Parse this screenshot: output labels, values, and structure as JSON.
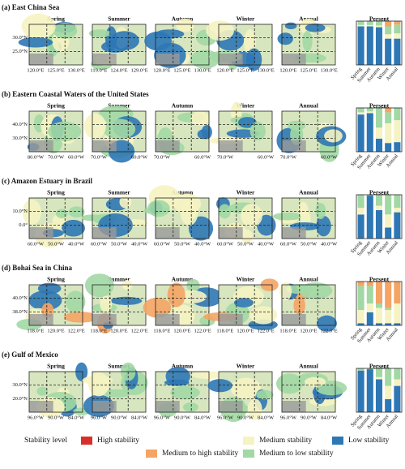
{
  "legend_title": "Stability level",
  "panels": [
    {
      "title": "(a) East China Sea",
      "map_titles": [
        "Spring",
        "Summer",
        "Autumn",
        "Winter",
        "Annual"
      ],
      "lat_labels": [
        "30.0°N",
        "25.0°N"
      ],
      "lon_labels": [
        [
          "120.0°E",
          "125.0°E",
          "130.0°E"
        ],
        [
          "119.0°E",
          "124.0°E",
          "129.0°E"
        ],
        [
          "120.0°E",
          "125.0°E",
          "130.0°E"
        ],
        [
          "120.0°E",
          "125.0°E",
          "130.0°E"
        ],
        [
          "120.0°E",
          "125.0°E",
          "130.0°E"
        ]
      ]
    },
    {
      "title": "(b) Eastern Coastal Waters of the United States",
      "map_titles": [
        "Spring",
        "Summer",
        "Autumn",
        "Winter",
        "Annual"
      ],
      "lat_labels": [
        "40.0°N",
        "30.0°N"
      ],
      "lon_labels": [
        [
          "80.0°W",
          "70.0°W",
          "60.0°W"
        ],
        [
          "70.0°W",
          "60.0°W"
        ],
        [
          "70.0°W",
          "60.0°W"
        ],
        [
          "70.0°W",
          "60.0°W"
        ],
        [
          "70.0°W",
          "60.0°W"
        ]
      ]
    },
    {
      "title": "(c) Amazon Estuary in Brazil",
      "map_titles": [
        "Spring",
        "Summer",
        "Autumn",
        "Winter",
        "Annual"
      ],
      "lat_labels": [
        "10.0°N",
        "0.0°"
      ],
      "lon_labels": [
        [
          "60.0°W",
          "50.0°W",
          "40.0°W"
        ],
        [
          "60.0°W",
          "50.0°W",
          "40.0°W"
        ],
        [
          "60.0°W",
          "50.0°W",
          "40.0°W"
        ],
        [
          "60.0°W",
          "50.0°W",
          "40.0°W"
        ],
        [
          "60.0°W",
          "50.0°W",
          "40.0°W"
        ]
      ]
    },
    {
      "title": "(d) Bohai Sea in China",
      "map_titles": [
        "Spring",
        "Summer",
        "Autumn",
        "Winter",
        "Annual"
      ],
      "lat_labels": [
        "40.0°N",
        "38.0°N"
      ],
      "lon_labels": [
        [
          "118.0°E",
          "120.0°E",
          "122.0°E"
        ],
        [
          "118.0°E",
          "120.0°E",
          "122.0°E"
        ],
        [
          "118.0°E",
          "120.0°E",
          "122.0°E"
        ],
        [
          "118.0°E",
          "120.0°E",
          "122.0°E"
        ],
        [
          "118.0°E",
          "120.0°E",
          "122.0°E"
        ]
      ]
    },
    {
      "title": "(e) Gulf of Mexico",
      "map_titles": [
        "Spring",
        "Summer",
        "Autumn",
        "Winter",
        "Annual"
      ],
      "lat_labels": [
        "30.0°N",
        "20.0°N"
      ],
      "lon_labels": [
        [
          "96.0°W",
          "90.0°W",
          "84.0°W"
        ],
        [
          "96.0°W",
          "90.0°W",
          "84.0°W"
        ],
        [
          "96.0°W",
          "90.0°W",
          "84.0°W"
        ],
        [
          "96.0°W",
          "90.0°W",
          "84.0°W"
        ],
        [
          "96.0°W",
          "90.0°W",
          "84.0°W"
        ]
      ]
    }
  ],
  "chart_data": [
    {
      "type": "stacked_bar",
      "title": "Persent",
      "categories": [
        "Spring",
        "Summer",
        "Autumn",
        "Winter",
        "Annual"
      ],
      "ylim": [
        0,
        100
      ],
      "series": [
        {
          "name": "Low stability",
          "color": "#2e77b5",
          "values": [
            88,
            88,
            86,
            60,
            60
          ]
        },
        {
          "name": "Medium stability",
          "color": "#f6f3c2",
          "values": [
            3,
            3,
            4,
            10,
            12
          ]
        },
        {
          "name": "Medium to low stability",
          "color": "#a2d8a4",
          "values": [
            9,
            9,
            10,
            18,
            20
          ]
        },
        {
          "name": "Medium to high stability",
          "color": "#f4a464",
          "values": [
            0,
            0,
            0,
            12,
            8
          ]
        },
        {
          "name": "High stability",
          "color": "#d7302a",
          "values": [
            0,
            0,
            0,
            0,
            0
          ]
        }
      ]
    },
    {
      "type": "stacked_bar",
      "title": "Persent",
      "categories": [
        "Spring",
        "Summer",
        "Autumn",
        "Winter",
        "Annual"
      ],
      "ylim": [
        0,
        100
      ],
      "series": [
        {
          "name": "Low stability",
          "color": "#2e77b5",
          "values": [
            85,
            88,
            30,
            20,
            22
          ]
        },
        {
          "name": "Medium stability",
          "color": "#f6f3c2",
          "values": [
            5,
            4,
            25,
            45,
            50
          ]
        },
        {
          "name": "Medium to low stability",
          "color": "#a2d8a4",
          "values": [
            10,
            8,
            45,
            25,
            28
          ]
        },
        {
          "name": "Medium to high stability",
          "color": "#f4a464",
          "values": [
            0,
            0,
            0,
            10,
            0
          ]
        },
        {
          "name": "High stability",
          "color": "#d7302a",
          "values": [
            0,
            0,
            0,
            0,
            0
          ]
        }
      ]
    },
    {
      "type": "stacked_bar",
      "title": "Persent",
      "categories": [
        "Spring",
        "Summer",
        "Autumn",
        "Winter",
        "Annual"
      ],
      "ylim": [
        0,
        100
      ],
      "series": [
        {
          "name": "Low stability",
          "color": "#2e77b5",
          "values": [
            55,
            98,
            65,
            25,
            60
          ]
        },
        {
          "name": "Medium stability",
          "color": "#f6f3c2",
          "values": [
            15,
            0,
            10,
            30,
            10
          ]
        },
        {
          "name": "Medium to low stability",
          "color": "#a2d8a4",
          "values": [
            30,
            2,
            25,
            45,
            30
          ]
        },
        {
          "name": "Medium to high stability",
          "color": "#f4a464",
          "values": [
            0,
            0,
            0,
            0,
            0
          ]
        },
        {
          "name": "High stability",
          "color": "#d7302a",
          "values": [
            0,
            0,
            0,
            0,
            0
          ]
        }
      ]
    },
    {
      "type": "stacked_bar",
      "title": "Persent",
      "categories": [
        "Spring",
        "Summer",
        "Autumn",
        "Winter",
        "Annual"
      ],
      "ylim": [
        0,
        100
      ],
      "series": [
        {
          "name": "Low stability",
          "color": "#2e77b5",
          "values": [
            5,
            30,
            5,
            5,
            5
          ]
        },
        {
          "name": "Medium stability",
          "color": "#f6f3c2",
          "values": [
            30,
            20,
            35,
            30,
            45
          ]
        },
        {
          "name": "Medium to low stability",
          "color": "#a2d8a4",
          "values": [
            55,
            40,
            10,
            5,
            0
          ]
        },
        {
          "name": "Medium to high stability",
          "color": "#f4a464",
          "values": [
            10,
            10,
            50,
            60,
            50
          ]
        },
        {
          "name": "High stability",
          "color": "#d7302a",
          "values": [
            0,
            0,
            0,
            0,
            0
          ]
        }
      ]
    },
    {
      "type": "stacked_bar",
      "title": "Persent",
      "categories": [
        "Spring",
        "Summer",
        "Autumn",
        "Winter",
        "Annual"
      ],
      "ylim": [
        0,
        100
      ],
      "series": [
        {
          "name": "Low stability",
          "color": "#2e77b5",
          "values": [
            95,
            98,
            75,
            30,
            60
          ]
        },
        {
          "name": "Medium stability",
          "color": "#f6f3c2",
          "values": [
            0,
            0,
            5,
            30,
            15
          ]
        },
        {
          "name": "Medium to low stability",
          "color": "#a2d8a4",
          "values": [
            5,
            2,
            20,
            40,
            25
          ]
        },
        {
          "name": "Medium to high stability",
          "color": "#f4a464",
          "values": [
            0,
            0,
            0,
            0,
            0
          ]
        },
        {
          "name": "High stability",
          "color": "#d7302a",
          "values": [
            0,
            0,
            0,
            0,
            0
          ]
        }
      ]
    }
  ]
}
